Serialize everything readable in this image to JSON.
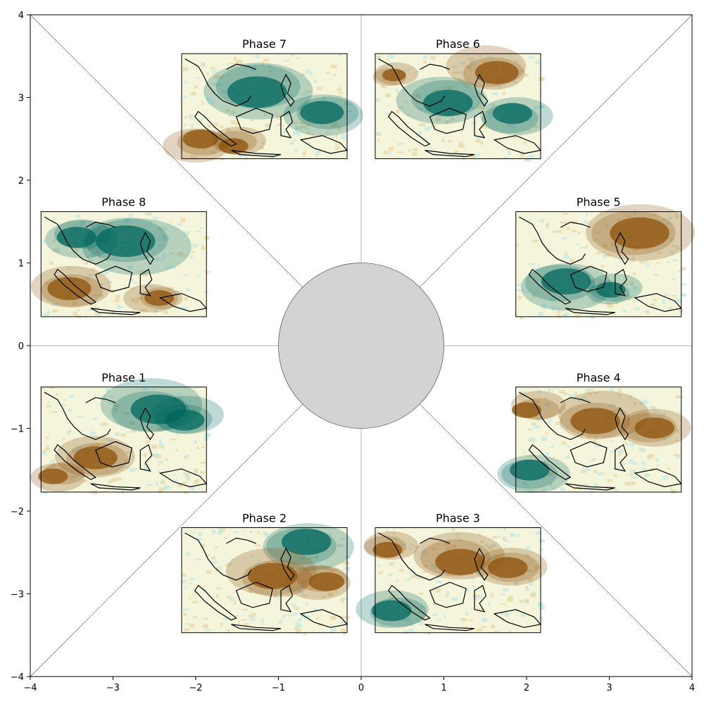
{
  "chart_data": {
    "type": "other",
    "title": "",
    "xlabel": "",
    "ylabel": "",
    "xlim": [
      -4,
      4
    ],
    "ylim": [
      -4,
      4
    ],
    "xticks": [
      -4,
      -3,
      -2,
      -1,
      0,
      1,
      2,
      3,
      4
    ],
    "yticks": [
      -4,
      -3,
      -2,
      -1,
      0,
      1,
      2,
      3,
      4
    ],
    "xtick_labels": [
      "−4",
      "−3",
      "−2",
      "−1",
      "0",
      "1",
      "2",
      "3",
      "4"
    ],
    "ytick_labels": [
      "−4",
      "−3",
      "−2",
      "−1",
      "0",
      "1",
      "2",
      "3",
      "4"
    ],
    "center_circle": {
      "x": 0,
      "y": 0,
      "radius": 1,
      "color": "#d3d3d3"
    },
    "colormap": "BrBG",
    "colors": {
      "wet": "#01665e",
      "dry": "#8c510a",
      "neutral": "#f5f5dc",
      "axis_lines": "#c0c0c0"
    },
    "panels": [
      {
        "label": "Phase 1",
        "sector": "west-southwest",
        "pattern": "wet-north-east"
      },
      {
        "label": "Phase 2",
        "sector": "south-southwest",
        "pattern": "dry-center-wet-north"
      },
      {
        "label": "Phase 3",
        "sector": "south-southeast",
        "pattern": "dry-north-wet-southwest"
      },
      {
        "label": "Phase 4",
        "sector": "east-southeast",
        "pattern": "dry-north-wet-southwest"
      },
      {
        "label": "Phase 5",
        "sector": "east-northeast",
        "pattern": "dry-northeast-wet-south"
      },
      {
        "label": "Phase 6",
        "sector": "north-northeast",
        "pattern": "wet-center-dry-north"
      },
      {
        "label": "Phase 7",
        "sector": "north-northwest",
        "pattern": "wet-north-dry-south"
      },
      {
        "label": "Phase 8",
        "sector": "west-northwest",
        "pattern": "wet-north-dry-southwest"
      }
    ]
  }
}
